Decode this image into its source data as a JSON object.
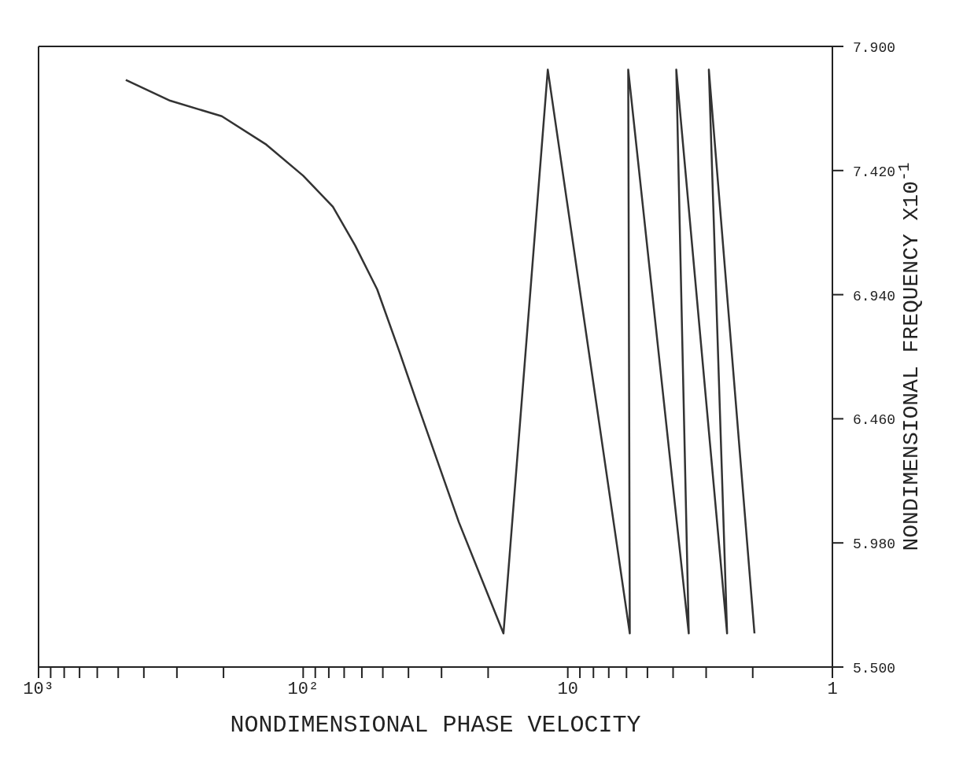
{
  "chart_data": {
    "type": "line",
    "xlabel": "NONDIMENSIONAL PHASE VELOCITY",
    "ylabel": "NONDIMENSIONAL FREQUENCY X10$^{-1}$",
    "x": [
      468,
      318,
      203,
      137.7,
      100,
      77.2,
      63.6,
      52.5,
      43.3,
      36.8,
      25.8,
      17.5,
      11.9,
      5.83,
      5.91,
      3.49,
      3.89,
      2.5,
      2.93,
      1.97
    ],
    "series": [
      {
        "color": "#333333",
        "values": [
          7.77,
          7.69,
          7.63,
          7.52,
          7.4,
          7.28,
          7.13,
          6.96,
          6.72,
          6.51,
          6.06,
          5.63,
          7.81,
          5.63,
          7.81,
          5.63,
          7.81,
          5.63,
          7.81,
          5.63
        ]
      }
    ],
    "log": "x",
    "xlim": [
      1000,
      1
    ],
    "xticks": [
      {
        "value": 1000,
        "label": "10³"
      },
      {
        "value": 900,
        "label": null
      },
      {
        "value": 800,
        "label": null
      },
      {
        "value": 700,
        "label": null
      },
      {
        "value": 600,
        "label": null
      },
      {
        "value": 500,
        "label": null
      },
      {
        "value": 400,
        "label": null
      },
      {
        "value": 300,
        "label": null
      },
      {
        "value": 200,
        "label": null
      },
      {
        "value": 100,
        "label": "10²"
      },
      {
        "value": 90,
        "label": null
      },
      {
        "value": 80,
        "label": null
      },
      {
        "value": 70,
        "label": null
      },
      {
        "value": 60,
        "label": null
      },
      {
        "value": 50,
        "label": null
      },
      {
        "value": 40,
        "label": null
      },
      {
        "value": 30,
        "label": null
      },
      {
        "value": 20,
        "label": null
      },
      {
        "value": 10,
        "label": "10"
      },
      {
        "value": 9,
        "label": null
      },
      {
        "value": 8,
        "label": null
      },
      {
        "value": 7,
        "label": null
      },
      {
        "value": 6,
        "label": null
      },
      {
        "value": 5,
        "label": null
      },
      {
        "value": 4,
        "label": null
      },
      {
        "value": 3,
        "label": null
      },
      {
        "value": 2,
        "label": null
      },
      1
    ],
    "ylim": [
      5.5,
      7.9
    ],
    "yticks": [
      {
        "value": 5.5,
        "label": "5.500"
      },
      {
        "value": 5.98,
        "label": "5.980"
      },
      {
        "value": 6.46,
        "label": "6.460"
      },
      {
        "value": 6.94,
        "label": "6.940"
      },
      {
        "value": 7.42,
        "label": "7.420"
      },
      {
        "value": 7.9,
        "label": "7.900"
      }
    ],
    "marker": "none",
    "line_style": "solid",
    "grid": false
  }
}
